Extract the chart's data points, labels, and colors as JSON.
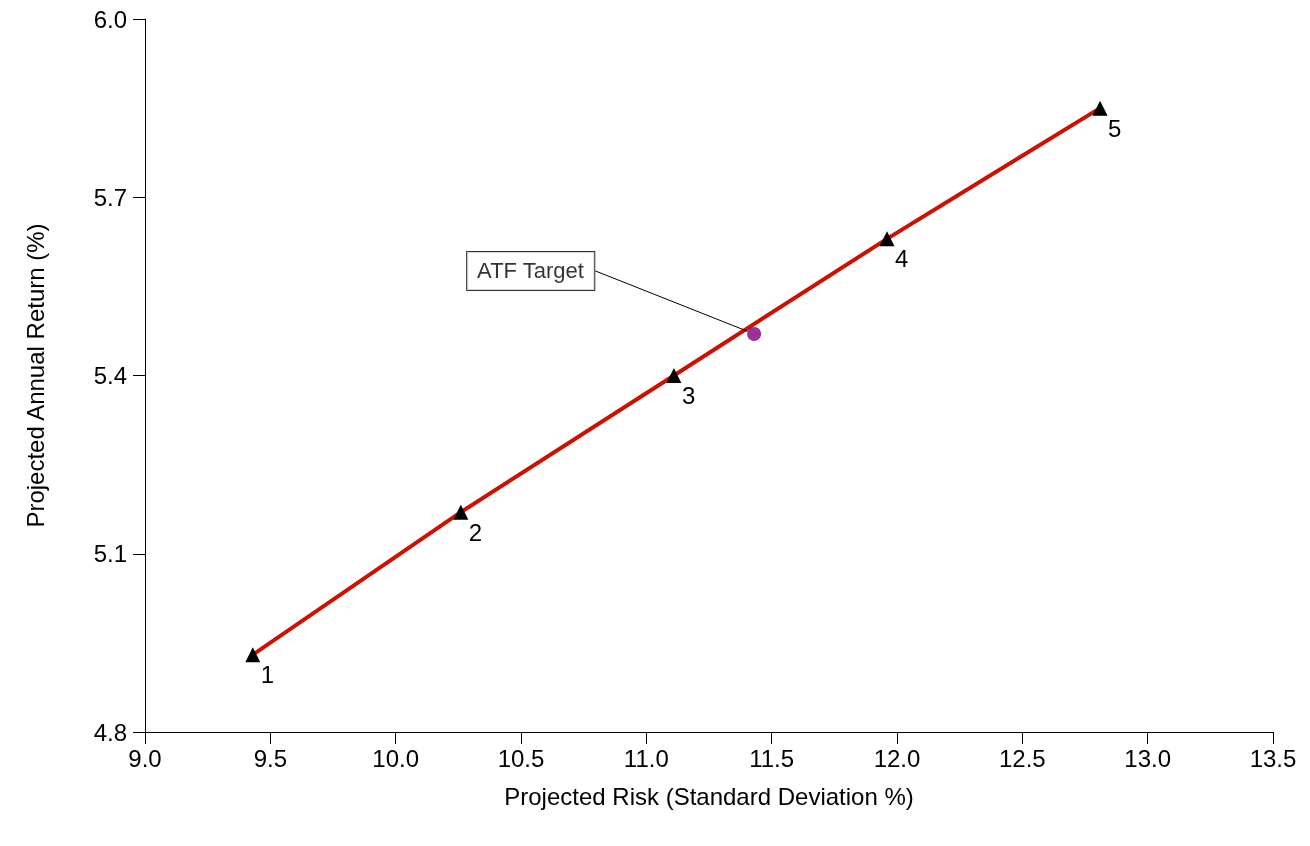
{
  "chart_data": {
    "type": "line",
    "xlabel": "Projected Risk (Standard Deviation %)",
    "ylabel": "Projected Annual Return (%)",
    "x": [
      9.43,
      10.26,
      11.11,
      11.96,
      12.81
    ],
    "series": [
      {
        "color": "#cc1100",
        "colors": [
          "#000000",
          "#000000",
          "#000000",
          "#000000",
          "#000000"
        ],
        "values": [
          4.93,
          5.17,
          5.4,
          5.63,
          5.85
        ],
        "marker": "triangle"
      },
      {
        "type": "scatter",
        "name": "ATF Target",
        "color": "#7f007f",
        "x": [
          11.43
        ],
        "values": [
          5.47
        ],
        "marker": "circle"
      }
    ],
    "xlim": [
      9.0,
      13.5
    ],
    "xticks": [
      {
        "value": 9.0,
        "label": "9.0"
      },
      9.5,
      {
        "value": 10.0,
        "label": "10.0"
      },
      10.5,
      {
        "value": 11.0,
        "label": "11.0"
      },
      11.5,
      {
        "value": 12.0,
        "label": "12.0"
      },
      12.5,
      {
        "value": 13.0,
        "label": "13.0"
      },
      13.5
    ],
    "ylim": [
      4.8,
      6.0
    ],
    "yticks": [
      4.8,
      5.1,
      5.4,
      5.7,
      {
        "value": 6.0,
        "label": "6.0"
      }
    ],
    "annotations": [
      {
        "text": "1",
        "x": 9.43,
        "y": 4.93
      },
      {
        "text": "2",
        "x": 10.26,
        "y": 5.17
      },
      {
        "text": "3",
        "x": 11.11,
        "y": 5.4
      },
      {
        "text": "4",
        "x": 11.96,
        "y": 5.63
      },
      {
        "text": "5",
        "x": 12.81,
        "y": 5.85
      }
    ],
    "grid": false,
    "legend": false
  }
}
